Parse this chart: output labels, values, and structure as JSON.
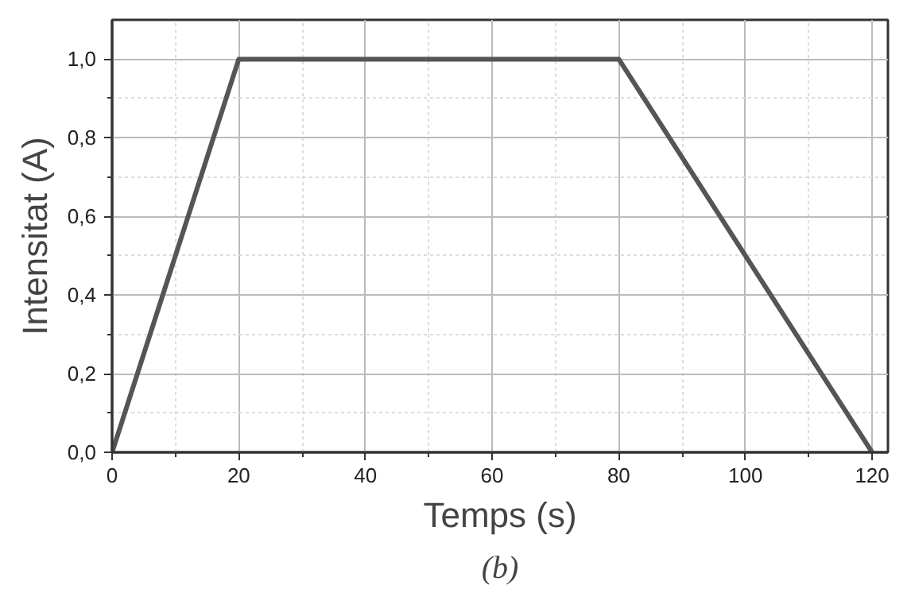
{
  "chart_data": {
    "type": "line",
    "xlabel": "Temps (s)",
    "ylabel": "Intensitat (A)",
    "x": [
      0,
      20,
      80,
      120
    ],
    "series": [
      {
        "color": "#555555",
        "values": [
          0,
          1,
          1,
          0
        ]
      }
    ],
    "xlim": [
      0,
      122.5
    ],
    "ylim": [
      0,
      1.1
    ],
    "xticks": [
      0,
      20,
      40,
      60,
      80,
      100,
      120
    ],
    "yticks": [
      {
        "value": 0,
        "label": "0,0"
      },
      {
        "value": 0.2,
        "label": "0,2"
      },
      {
        "value": 0.4,
        "label": "0,4"
      },
      {
        "value": 0.6,
        "label": "0,6"
      },
      {
        "value": 0.8,
        "label": "0,8"
      },
      {
        "value": 1.0,
        "label": "1,0"
      }
    ],
    "grid": true,
    "line_style": "solid",
    "annotations": [
      "(b)"
    ]
  }
}
